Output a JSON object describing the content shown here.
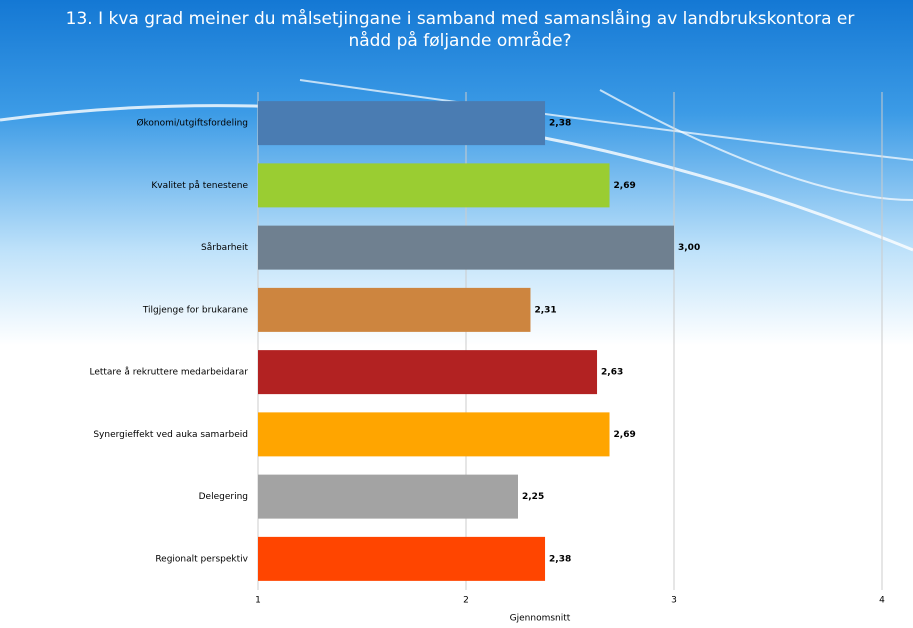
{
  "chart_data": {
    "type": "barh",
    "title": "13. I kva grad meiner du målsetjingane i samband med samanslåing av landbrukskontora er nådd på føljande område?",
    "categories": [
      "Økonomi/utgiftsfordeling",
      "Kvalitet på tenestene",
      "Sårbarheit",
      "Tilgjenge for brukarane",
      "Lettare å rekruttere medarbeidarar",
      "Synergieffekt ved auka samarbeid",
      "Delegering",
      "Regionalt perspektiv"
    ],
    "values": [
      2.38,
      2.69,
      3.0,
      2.31,
      2.63,
      2.69,
      2.25,
      2.38
    ],
    "value_labels": [
      "2,38",
      "2,69",
      "3,00",
      "2,31",
      "2,63",
      "2,69",
      "2,25",
      "2,38"
    ],
    "colors": [
      "#4a7cb2",
      "#9acd32",
      "#6f8090",
      "#cd853f",
      "#b22222",
      "#ffa500",
      "#a3a3a3",
      "#ff4500"
    ],
    "xlabel": "Gjennomsnitt",
    "xlim": [
      1,
      4
    ],
    "xticks": [
      1,
      2,
      3,
      4
    ],
    "grid": true
  }
}
